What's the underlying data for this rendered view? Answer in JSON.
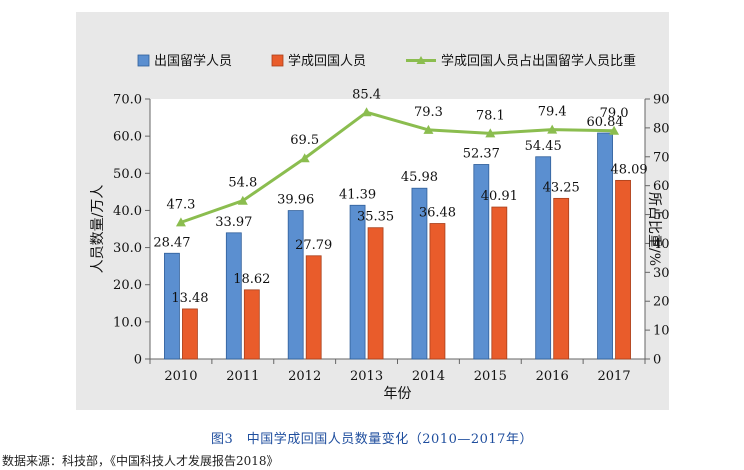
{
  "caption": "图3　中国学成回国人员数量变化（2010—2017年）",
  "source": "数据来源：科技部，《中国科技人才发展报告2018》",
  "colors": {
    "series_blue": "#5b8fd0",
    "series_orange": "#e95c2b",
    "series_green": "#8bbd4f",
    "panel_bg": "#e8e8e8",
    "plot_bg": "#ffffff"
  },
  "chart_data": {
    "type": "bar",
    "xlabel": "年份",
    "ylabel": "人员数量/万人",
    "y2label": "所占比重/%",
    "ylim": [
      0,
      70
    ],
    "y2lim": [
      0,
      90
    ],
    "yticks": [
      "0",
      "10.0",
      "20.0",
      "30.0",
      "40.0",
      "50.0",
      "60.0",
      "70.0"
    ],
    "y2ticks": [
      "0",
      "10.0",
      "20.0",
      "30.0",
      "40.0",
      "50.0",
      "60.0",
      "70.0",
      "80.0",
      "90.0"
    ],
    "categories": [
      "2010",
      "2011",
      "2012",
      "2013",
      "2014",
      "2015",
      "2016",
      "2017"
    ],
    "legend_position": "top",
    "grid": false,
    "series": [
      {
        "name": "出国留学人员",
        "kind": "bar",
        "values": [
          28.47,
          33.97,
          39.96,
          41.39,
          45.98,
          52.37,
          54.45,
          60.84
        ],
        "labels": [
          "28.47",
          "33.97",
          "39.96",
          "41.39",
          "45.98",
          "52.37",
          "54.45",
          "60.84"
        ]
      },
      {
        "name": "学成回国人员",
        "kind": "bar",
        "values": [
          13.48,
          18.62,
          27.79,
          35.35,
          36.48,
          40.91,
          43.25,
          48.09
        ],
        "labels": [
          "13.48",
          "18.62",
          "27.79",
          "35.35",
          "36.48",
          "40.91",
          "43.25",
          "48.09"
        ]
      },
      {
        "name": "学成回国人员占出国留学人员比重",
        "kind": "line",
        "axis": "right",
        "values": [
          47.3,
          54.8,
          69.5,
          85.4,
          79.3,
          78.1,
          79.4,
          79.0
        ],
        "labels": [
          "47.3",
          "54.8",
          "69.5",
          "85.4",
          "79.3",
          "78.1",
          "79.4",
          "79.0"
        ]
      }
    ]
  }
}
